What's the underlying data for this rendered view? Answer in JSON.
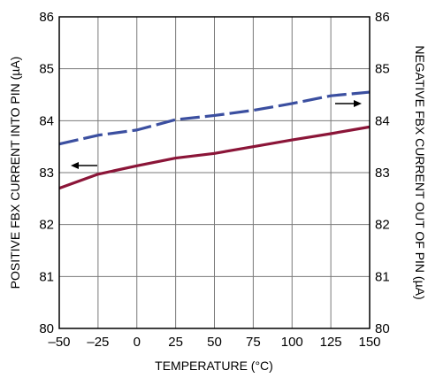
{
  "chart_data": {
    "type": "line",
    "title": "",
    "xlabel": "TEMPERATURE (°C)",
    "ylabel_left": "POSITIVE FBX CURRENT INTO PIN (µA)",
    "ylabel_right": "NEGATIVE FBX CURRENT OUT OF PIN (µA)",
    "xlim": [
      -50,
      150
    ],
    "ylim": [
      80,
      86
    ],
    "xticks": [
      "–50",
      "–25",
      "0",
      "25",
      "50",
      "75",
      "100",
      "125",
      "150"
    ],
    "yticks": [
      "80",
      "81",
      "82",
      "83",
      "84",
      "85",
      "86"
    ],
    "grid": true,
    "series": [
      {
        "axis": "left",
        "style": "solid",
        "color": "#8b1538",
        "x": [
          -50,
          -25,
          0,
          25,
          50,
          75,
          100,
          125,
          150
        ],
        "y": [
          82.7,
          82.97,
          83.13,
          83.28,
          83.37,
          83.5,
          83.63,
          83.75,
          83.88
        ]
      },
      {
        "axis": "right",
        "style": "dashed",
        "color": "#3b4fa0",
        "x": [
          -50,
          -25,
          0,
          25,
          50,
          75,
          100,
          125,
          150
        ],
        "y": [
          83.55,
          83.72,
          83.82,
          84.02,
          84.1,
          84.2,
          84.33,
          84.48,
          84.55
        ]
      }
    ]
  }
}
